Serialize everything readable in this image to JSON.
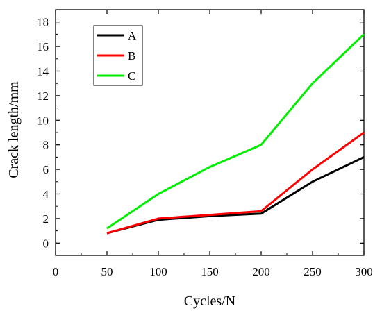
{
  "chart_data": {
    "type": "line",
    "xlabel": "Cycles/N",
    "ylabel": "Crack length/mm",
    "xlim": [
      0,
      300
    ],
    "ylim": [
      -1,
      19
    ],
    "xticks": [
      0,
      50,
      100,
      150,
      200,
      250,
      300
    ],
    "yticks": [
      0,
      2,
      4,
      6,
      8,
      10,
      12,
      14,
      16,
      18
    ],
    "grid": false,
    "legend_position": "top-left",
    "x": [
      50,
      100,
      150,
      200,
      250,
      300
    ],
    "series": [
      {
        "name": "A",
        "color": "#000000",
        "values": [
          0.8,
          1.9,
          2.2,
          2.4,
          5.0,
          7.0
        ]
      },
      {
        "name": "B",
        "color": "#ff0000",
        "values": [
          0.8,
          2.0,
          2.3,
          2.6,
          6.0,
          9.0
        ]
      },
      {
        "name": "C",
        "color": "#00ee00",
        "values": [
          1.2,
          4.0,
          6.2,
          8.0,
          13.0,
          17.0
        ]
      }
    ]
  }
}
